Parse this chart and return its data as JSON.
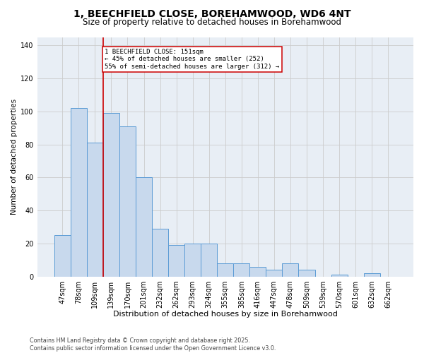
{
  "title_line1": "1, BEECHFIELD CLOSE, BOREHAMWOOD, WD6 4NT",
  "title_line2": "Size of property relative to detached houses in Borehamwood",
  "xlabel": "Distribution of detached houses by size in Borehamwood",
  "ylabel": "Number of detached properties",
  "categories": [
    "47sqm",
    "78sqm",
    "109sqm",
    "139sqm",
    "170sqm",
    "201sqm",
    "232sqm",
    "262sqm",
    "293sqm",
    "324sqm",
    "355sqm",
    "385sqm",
    "416sqm",
    "447sqm",
    "478sqm",
    "509sqm",
    "539sqm",
    "570sqm",
    "601sqm",
    "632sqm",
    "662sqm"
  ],
  "values": [
    25,
    102,
    81,
    99,
    91,
    60,
    29,
    19,
    20,
    20,
    8,
    8,
    6,
    4,
    8,
    4,
    0,
    1,
    0,
    2,
    0
  ],
  "bar_color": "#c8d9ed",
  "bar_edge_color": "#5b9bd5",
  "vline_x": 2.5,
  "vline_color": "#cc0000",
  "annotation_text": "1 BEECHFIELD CLOSE: 151sqm\n← 45% of detached houses are smaller (252)\n55% of semi-detached houses are larger (312) →",
  "annotation_box_color": "#ffffff",
  "annotation_box_edge": "#cc0000",
  "annotation_fontsize": 6.5,
  "ylim": [
    0,
    145
  ],
  "yticks": [
    0,
    20,
    40,
    60,
    80,
    100,
    120,
    140
  ],
  "grid_color": "#cccccc",
  "background_color": "#e8eef5",
  "footer_text": "Contains HM Land Registry data © Crown copyright and database right 2025.\nContains public sector information licensed under the Open Government Licence v3.0.",
  "title_fontsize": 10,
  "subtitle_fontsize": 8.5,
  "xlabel_fontsize": 8,
  "ylabel_fontsize": 7.5,
  "tick_fontsize": 7
}
